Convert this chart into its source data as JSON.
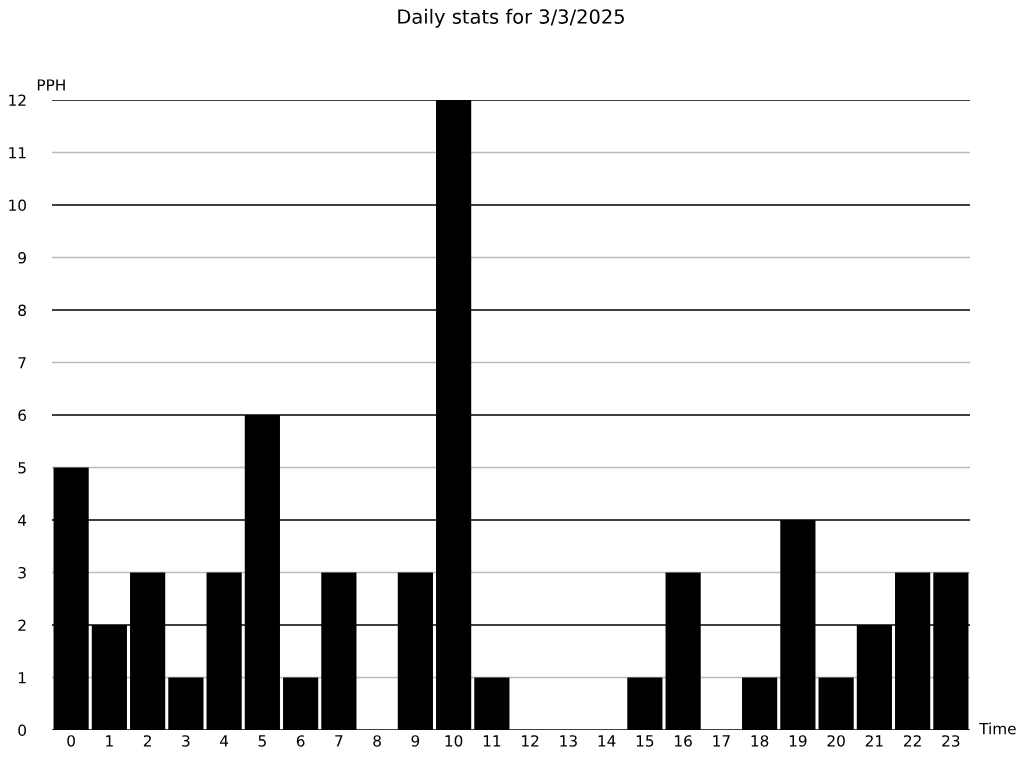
{
  "chart_data": {
    "type": "bar",
    "title": "Daily stats for 3/3/2025",
    "xlabel": "Time",
    "ylabel": "PPH",
    "categories": [
      "0",
      "1",
      "2",
      "3",
      "4",
      "5",
      "6",
      "7",
      "8",
      "9",
      "10",
      "11",
      "12",
      "13",
      "14",
      "15",
      "16",
      "17",
      "18",
      "19",
      "20",
      "21",
      "22",
      "23"
    ],
    "values": [
      5,
      2,
      3,
      1,
      3,
      6,
      1,
      3,
      0,
      3,
      12,
      1,
      0,
      0,
      0,
      1,
      3,
      0,
      1,
      4,
      1,
      2,
      3,
      3
    ],
    "color": "#000000",
    "ylim": [
      0,
      12
    ],
    "yticks": [
      0,
      1,
      2,
      3,
      4,
      5,
      6,
      7,
      8,
      9,
      10,
      11,
      12
    ],
    "grid": "y",
    "legend": false
  }
}
